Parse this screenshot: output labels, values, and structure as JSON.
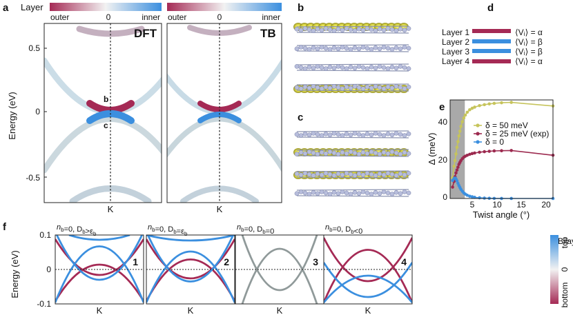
{
  "colors": {
    "outer": "#a52a55",
    "inner": "#3b8fdf",
    "neutral": "#d8d8d8",
    "a50": "#c6c45c",
    "a25": "#9c2a4f",
    "a0": "#3b8fdf",
    "gray": "#909a9a",
    "shade": "#a9a9a9"
  },
  "panel_a": {
    "label": "a",
    "colorbar": {
      "title": "Layer",
      "left": "outer",
      "center": "0",
      "right": "inner"
    },
    "subplots": [
      {
        "title": "DFT"
      },
      {
        "title": "TB"
      }
    ],
    "ylabel": "Energy (eV)",
    "yticks": [
      "0.5",
      "0",
      "-0.5"
    ],
    "xtick": "K",
    "annotations": [
      "b",
      "c"
    ]
  },
  "panel_b": {
    "label": "b"
  },
  "panel_c": {
    "label": "c"
  },
  "panel_d": {
    "label": "d",
    "layers": [
      {
        "name": "Layer 1",
        "potential": "⟨Vᵢ⟩ = α",
        "color_key": "outer"
      },
      {
        "name": "Layer 2",
        "potential": "⟨Vᵢ⟩ = β",
        "color_key": "inner"
      },
      {
        "name": "Layer 3",
        "potential": "⟨Vᵢ⟩ = β",
        "color_key": "inner"
      },
      {
        "name": "Layer 4",
        "potential": "⟨Vᵢ⟩ = α",
        "color_key": "outer"
      }
    ]
  },
  "panel_e": {
    "label": "e",
    "xticks": [
      "5",
      "10",
      "15",
      "20"
    ],
    "yticks": [
      "0",
      "20",
      "40"
    ]
  },
  "panel_f": {
    "label": "f",
    "ylabel": "Energy (eV)",
    "yticks": [
      "0.1",
      "0",
      "-0.1"
    ],
    "xtick": "K",
    "colorbar": {
      "title": "Bilayer",
      "top": "top",
      "center": "0",
      "bottom": "bottom"
    },
    "subplots": [
      {
        "title_parts": [
          "n",
          "b",
          "=0, D",
          "b",
          ">ε",
          "b"
        ],
        "number": "1"
      },
      {
        "title_parts": [
          "n",
          "b",
          "=0, D",
          "b",
          "=ε",
          "b"
        ],
        "number": "2"
      },
      {
        "title_parts": [
          "n",
          "b",
          "=0, D",
          "b",
          "=0",
          ""
        ],
        "number": "3"
      },
      {
        "title_parts": [
          "n",
          "b",
          "=0, D",
          "b",
          "<0",
          ""
        ],
        "number": "4"
      }
    ]
  },
  "chart_data": [
    {
      "id": "e",
      "type": "line",
      "xlabel": "Twist angle (°)",
      "ylabel": "Δ (meV)",
      "xlim": [
        1,
        22
      ],
      "ylim": [
        0,
        52
      ],
      "shaded_x": [
        1,
        4
      ],
      "legend": "top-right",
      "series": [
        {
          "name": "δ = 50 meV",
          "color_key": "a50",
          "points": [
            [
              1.5,
              11
            ],
            [
              1.8,
              17
            ],
            [
              2.0,
              20
            ],
            [
              2.2,
              23.5
            ],
            [
              2.4,
              27
            ],
            [
              2.6,
              30
            ],
            [
              2.8,
              33
            ],
            [
              3.0,
              35.5
            ],
            [
              3.2,
              38
            ],
            [
              3.5,
              40.5
            ],
            [
              3.8,
              42.5
            ],
            [
              4.1,
              44
            ],
            [
              4.5,
              45.5
            ],
            [
              5.0,
              46.8
            ],
            [
              5.5,
              47.6
            ],
            [
              6.0,
              48.2
            ],
            [
              7.0,
              49
            ],
            [
              8.0,
              49.5
            ],
            [
              9.0,
              49.9
            ],
            [
              10.0,
              50.2
            ],
            [
              11.5,
              50.5
            ],
            [
              13.5,
              50.7
            ],
            [
              22,
              48.8
            ]
          ]
        },
        {
          "name": "δ = 25 meV (exp)",
          "color_key": "a25",
          "points": [
            [
              1.5,
              6
            ],
            [
              1.8,
              9
            ],
            [
              2.0,
              11.5
            ],
            [
              2.2,
              13.5
            ],
            [
              2.4,
              15
            ],
            [
              2.6,
              16.5
            ],
            [
              2.8,
              18
            ],
            [
              3.0,
              19
            ],
            [
              3.2,
              20
            ],
            [
              3.5,
              21
            ],
            [
              3.8,
              21.8
            ],
            [
              4.1,
              22.3
            ],
            [
              4.5,
              22.8
            ],
            [
              5.0,
              23.3
            ],
            [
              5.5,
              23.7
            ],
            [
              6.0,
              24.0
            ],
            [
              7.0,
              24.4
            ],
            [
              8.0,
              24.7
            ],
            [
              9.0,
              24.9
            ],
            [
              10.0,
              25.1
            ],
            [
              11.5,
              25.2
            ],
            [
              13.5,
              25.3
            ],
            [
              22,
              22.8
            ]
          ]
        },
        {
          "name": "δ = 0",
          "color_key": "a0",
          "points": [
            [
              1.5,
              9.5
            ],
            [
              1.8,
              10.5
            ],
            [
              2.0,
              10.8
            ],
            [
              2.2,
              10.3
            ],
            [
              2.4,
              9.3
            ],
            [
              2.6,
              8.0
            ],
            [
              2.8,
              6.8
            ],
            [
              3.0,
              5.8
            ],
            [
              3.2,
              4.8
            ],
            [
              3.5,
              3.8
            ],
            [
              3.8,
              2.9
            ],
            [
              4.1,
              2.3
            ],
            [
              4.5,
              1.7
            ],
            [
              5.0,
              1.2
            ],
            [
              5.5,
              0.9
            ],
            [
              6.0,
              0.6
            ],
            [
              7.0,
              0.35
            ],
            [
              8.0,
              0.2
            ],
            [
              9.0,
              0.1
            ],
            [
              10.0,
              0.05
            ],
            [
              11.5,
              0.02
            ],
            [
              13.5,
              0.01
            ],
            [
              22,
              0
            ]
          ]
        }
      ]
    }
  ]
}
